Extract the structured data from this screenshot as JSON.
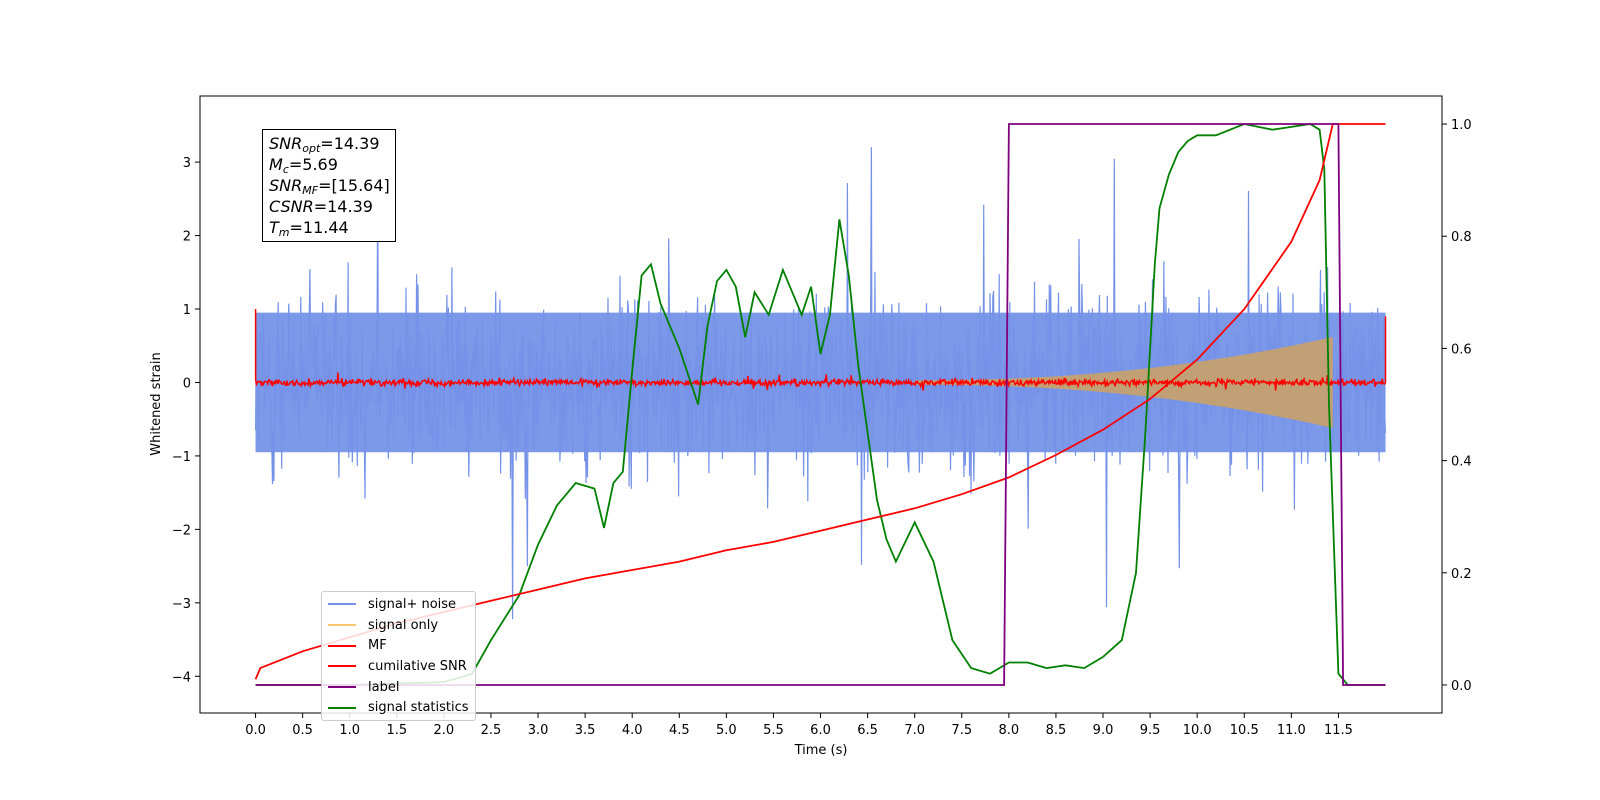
{
  "chart_data": {
    "type": "line",
    "xlabel": "Time (s)",
    "ylabel_left": "Whitened strain",
    "xlim": [
      -0.59,
      12.6
    ],
    "ylim_left": [
      -4.5,
      3.9
    ],
    "ylim_right": [
      -0.05,
      1.05
    ],
    "x_ticks": [
      "0.0",
      "0.5",
      "1.0",
      "1.5",
      "2.0",
      "2.5",
      "3.0",
      "3.5",
      "4.0",
      "4.5",
      "5.0",
      "5.5",
      "6.0",
      "6.5",
      "7.0",
      "7.5",
      "8.0",
      "8.5",
      "9.0",
      "9.5",
      "10.0",
      "10.5",
      "11.0",
      "11.5"
    ],
    "y_ticks_left": [
      "3",
      "2",
      "1",
      "0",
      "−1",
      "−2",
      "−3",
      "−4"
    ],
    "y_ticks_right": [
      "0.0",
      "0.2",
      "0.4",
      "0.6",
      "0.8",
      "1.0"
    ],
    "legend": {
      "position": "lower-left",
      "entries": [
        {
          "label": "signal+ noise",
          "color": "#7592e8"
        },
        {
          "label": "signal only",
          "color": "#f5c870"
        },
        {
          "label": "MF",
          "color": "#ff0000"
        },
        {
          "label": "cumilative SNR",
          "color": "#ff0000"
        },
        {
          "label": "label",
          "color": "#800080"
        },
        {
          "label": "signal statistics",
          "color": "#008000"
        }
      ]
    },
    "annotation": {
      "snr_opt_label": "SNR",
      "snr_opt_sub": "opt",
      "snr_opt_value": "=14.39",
      "mc_label": "M",
      "mc_sub": "c",
      "mc_value": "=5.69",
      "snr_mf_label": "SNR",
      "snr_mf_sub": "MF",
      "snr_mf_value": "=[15.64]",
      "csnr_label": "CSNR",
      "csnr_value": "=14.39",
      "tm_label": "T",
      "tm_sub": "m",
      "tm_value": "=11.44"
    },
    "series": [
      {
        "name": "signal+ noise",
        "axis": "left",
        "color": "#7592e8",
        "style": "noise",
        "x_range": [
          0,
          12.0
        ],
        "amplitude": 1.0,
        "spike_max": 3.25,
        "spike_min": -3.3
      },
      {
        "name": "signal only",
        "axis": "left",
        "color": "#f5c870",
        "style": "chirp_envelope",
        "x_start": 7.0,
        "x_end": 11.44,
        "amp_start": 0.03,
        "amp_end": 0.62
      },
      {
        "name": "MF",
        "axis": "left",
        "color": "#ff0000",
        "style": "noise",
        "x_range": [
          0,
          12.0
        ],
        "amplitude": 0.03,
        "edge_values": [
          1.0,
          0.9
        ]
      },
      {
        "name": "cumilative SNR",
        "axis": "right",
        "color": "#ff0000",
        "x": [
          0.0,
          0.05,
          0.5,
          1.0,
          1.5,
          2.0,
          2.5,
          3.0,
          3.5,
          4.0,
          4.5,
          5.0,
          5.5,
          6.0,
          6.5,
          7.0,
          7.5,
          8.0,
          8.5,
          9.0,
          9.5,
          10.0,
          10.5,
          11.0,
          11.3,
          11.44,
          12.0
        ],
        "y": [
          0.01,
          0.03,
          0.06,
          0.085,
          0.11,
          0.13,
          0.15,
          0.17,
          0.19,
          0.205,
          0.22,
          0.24,
          0.255,
          0.275,
          0.295,
          0.315,
          0.34,
          0.37,
          0.41,
          0.455,
          0.51,
          0.58,
          0.67,
          0.79,
          0.9,
          1.0,
          1.0
        ]
      },
      {
        "name": "label",
        "axis": "right",
        "color": "#800080",
        "x": [
          0.0,
          7.95,
          8.0,
          11.5,
          11.55,
          12.0
        ],
        "y": [
          0,
          0,
          1,
          1,
          0,
          0
        ]
      },
      {
        "name": "signal statistics",
        "axis": "right",
        "color": "#008000",
        "x": [
          0.0,
          1.0,
          2.0,
          2.3,
          2.5,
          2.8,
          3.0,
          3.2,
          3.4,
          3.6,
          3.7,
          3.8,
          3.9,
          4.0,
          4.1,
          4.2,
          4.3,
          4.5,
          4.7,
          4.8,
          4.9,
          5.0,
          5.1,
          5.2,
          5.3,
          5.45,
          5.6,
          5.7,
          5.8,
          5.9,
          6.0,
          6.1,
          6.2,
          6.3,
          6.4,
          6.5,
          6.6,
          6.7,
          6.8,
          7.0,
          7.2,
          7.4,
          7.6,
          7.8,
          7.9,
          8.0,
          8.2,
          8.4,
          8.6,
          8.8,
          9.0,
          9.2,
          9.35,
          9.45,
          9.55,
          9.6,
          9.7,
          9.8,
          9.9,
          10.0,
          10.2,
          10.5,
          10.8,
          11.0,
          11.2,
          11.3,
          11.35,
          11.4,
          11.5,
          11.6,
          12.0
        ],
        "y": [
          0.0,
          0.0,
          0.005,
          0.02,
          0.08,
          0.16,
          0.25,
          0.32,
          0.36,
          0.35,
          0.28,
          0.36,
          0.38,
          0.56,
          0.73,
          0.75,
          0.68,
          0.6,
          0.5,
          0.64,
          0.72,
          0.74,
          0.71,
          0.62,
          0.7,
          0.66,
          0.74,
          0.7,
          0.66,
          0.71,
          0.59,
          0.66,
          0.83,
          0.73,
          0.57,
          0.45,
          0.33,
          0.26,
          0.22,
          0.29,
          0.22,
          0.08,
          0.03,
          0.02,
          0.03,
          0.04,
          0.04,
          0.03,
          0.035,
          0.03,
          0.05,
          0.08,
          0.2,
          0.45,
          0.75,
          0.85,
          0.91,
          0.95,
          0.97,
          0.98,
          0.98,
          1.0,
          0.99,
          0.995,
          1.0,
          0.99,
          0.92,
          0.5,
          0.02,
          0.0,
          0.0
        ]
      }
    ]
  }
}
